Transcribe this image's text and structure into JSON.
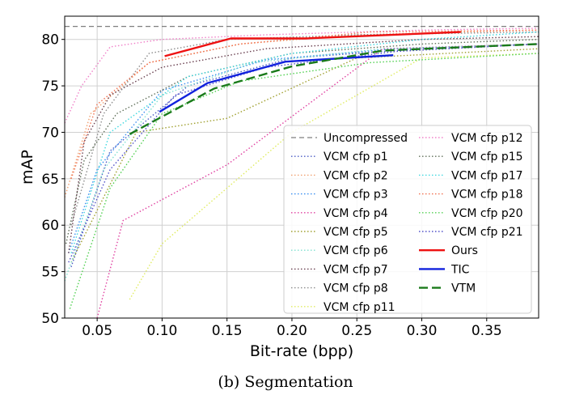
{
  "chart_data": {
    "type": "line",
    "title": "",
    "xlabel": "Bit-rate (bpp)",
    "ylabel": "mAP",
    "xlim": [
      0.025,
      0.39
    ],
    "ylim": [
      50,
      82.5
    ],
    "xticks": [
      "0.05",
      "0.10",
      "0.15",
      "0.20",
      "0.25",
      "0.30",
      "0.35"
    ],
    "xtick_values": [
      0.05,
      0.1,
      0.15,
      0.2,
      0.25,
      0.3,
      0.35
    ],
    "yticks": [
      "50",
      "55",
      "60",
      "65",
      "70",
      "75",
      "80"
    ],
    "ytick_values": [
      50,
      55,
      60,
      65,
      70,
      75,
      80
    ],
    "grid": true,
    "legend_placement": "lower-right",
    "legend_columns": 2,
    "series": [
      {
        "name": "Uncompressed",
        "color": "#7f7f7f",
        "style": "dashed",
        "width": 1.2,
        "x": [
          0.025,
          0.39
        ],
        "y": [
          81.4,
          81.4
        ]
      },
      {
        "name": "VCM cfp p1",
        "color": "#4b5cc4",
        "style": "dotted",
        "width": 1.4,
        "x": [
          0.03,
          0.06,
          0.12,
          0.2,
          0.3,
          0.39
        ],
        "y": [
          55.5,
          68.0,
          75.0,
          78.0,
          79.0,
          79.5
        ]
      },
      {
        "name": "VCM cfp p2",
        "color": "#f0a070",
        "style": "dotted",
        "width": 1.4,
        "x": [
          0.025,
          0.045,
          0.09,
          0.16,
          0.25,
          0.39
        ],
        "y": [
          63.0,
          72.0,
          77.5,
          79.5,
          80.5,
          81.0
        ]
      },
      {
        "name": "VCM cfp p3",
        "color": "#3a8ff0",
        "style": "dotted",
        "width": 1.4,
        "x": [
          0.028,
          0.05,
          0.1,
          0.18,
          0.28,
          0.39
        ],
        "y": [
          57.0,
          66.0,
          74.5,
          77.8,
          79.0,
          79.5
        ]
      },
      {
        "name": "VCM cfp p4",
        "color": "#e040a0",
        "style": "dotted",
        "width": 1.4,
        "x": [
          0.05,
          0.07,
          0.15,
          0.27,
          0.39
        ],
        "y": [
          50.0,
          60.5,
          66.5,
          79.0,
          79.5
        ]
      },
      {
        "name": "VCM cfp p5",
        "color": "#a0a030",
        "style": "dotted",
        "width": 1.4,
        "x": [
          0.03,
          0.08,
          0.15,
          0.25,
          0.39
        ],
        "y": [
          56.0,
          70.0,
          71.5,
          78.0,
          79.0
        ]
      },
      {
        "name": "VCM cfp p6",
        "color": "#7fe0d0",
        "style": "dotted",
        "width": 1.4,
        "x": [
          0.025,
          0.055,
          0.1,
          0.17,
          0.27,
          0.39
        ],
        "y": [
          54.0,
          66.0,
          74.0,
          77.5,
          79.0,
          79.5
        ]
      },
      {
        "name": "VCM cfp p7",
        "color": "#6a4050",
        "style": "dotted",
        "width": 1.4,
        "x": [
          0.028,
          0.04,
          0.06,
          0.1,
          0.18,
          0.3,
          0.39
        ],
        "y": [
          57.0,
          69.0,
          74.0,
          77.0,
          79.0,
          80.0,
          80.3
        ]
      },
      {
        "name": "VCM cfp p8",
        "color": "#8c8c8c",
        "style": "dotted",
        "width": 1.4,
        "x": [
          0.03,
          0.055,
          0.09,
          0.15,
          0.25,
          0.39
        ],
        "y": [
          60.0,
          72.0,
          78.5,
          80.0,
          80.5,
          80.8
        ]
      },
      {
        "name": "VCM cfp p11",
        "color": "#e0ec60",
        "style": "dotted",
        "width": 1.4,
        "x": [
          0.075,
          0.1,
          0.2,
          0.3,
          0.39
        ],
        "y": [
          52.0,
          58.0,
          70.0,
          78.0,
          78.5
        ]
      },
      {
        "name": "VCM cfp p12",
        "color": "#f080c8",
        "style": "dotted",
        "width": 1.4,
        "x": [
          0.025,
          0.038,
          0.06,
          0.1,
          0.18,
          0.3,
          0.39
        ],
        "y": [
          71.0,
          75.0,
          79.2,
          80.0,
          80.5,
          81.0,
          81.2
        ]
      },
      {
        "name": "VCM cfp p15",
        "color": "#60705a",
        "style": "dotted",
        "width": 1.4,
        "x": [
          0.026,
          0.04,
          0.065,
          0.12,
          0.2,
          0.3,
          0.39
        ],
        "y": [
          58.0,
          67.0,
          72.0,
          76.0,
          78.5,
          79.5,
          80.0
        ]
      },
      {
        "name": "VCM cfp p17",
        "color": "#40d8e0",
        "style": "dotted",
        "width": 1.4,
        "x": [
          0.03,
          0.06,
          0.12,
          0.2,
          0.3,
          0.39
        ],
        "y": [
          57.0,
          70.0,
          76.0,
          78.5,
          80.0,
          80.8
        ]
      },
      {
        "name": "VCM cfp p18",
        "color": "#f07050",
        "style": "dotted",
        "width": 1.4,
        "x": [
          0.03,
          0.05,
          0.09,
          0.16,
          0.26,
          0.39
        ],
        "y": [
          65.0,
          73.0,
          77.5,
          79.5,
          80.8,
          81.0
        ]
      },
      {
        "name": "VCM cfp p20",
        "color": "#50d050",
        "style": "dotted",
        "width": 1.4,
        "x": [
          0.029,
          0.06,
          0.1,
          0.16,
          0.26,
          0.39
        ],
        "y": [
          51.0,
          64.0,
          72.0,
          75.5,
          77.5,
          78.5
        ]
      },
      {
        "name": "VCM cfp p21",
        "color": "#5050c8",
        "style": "dotted",
        "width": 1.4,
        "x": [
          0.028,
          0.06,
          0.11,
          0.18,
          0.28,
          0.39
        ],
        "y": [
          56.0,
          66.0,
          74.0,
          77.0,
          78.7,
          79.5
        ]
      },
      {
        "name": "Ours",
        "color": "#ee1111",
        "style": "solid",
        "width": 2.4,
        "x": [
          0.102,
          0.153,
          0.21,
          0.33
        ],
        "y": [
          78.2,
          80.1,
          80.1,
          80.8
        ]
      },
      {
        "name": "TIC",
        "color": "#1122dd",
        "style": "solid",
        "width": 2.4,
        "x": [
          0.098,
          0.135,
          0.195,
          0.278
        ],
        "y": [
          72.2,
          75.3,
          77.6,
          78.3
        ]
      },
      {
        "name": "VTM",
        "color": "#1a7a1a",
        "style": "dashed",
        "width": 2.4,
        "x": [
          0.075,
          0.14,
          0.2,
          0.27,
          0.39
        ],
        "y": [
          69.8,
          74.7,
          77.1,
          78.8,
          79.5
        ]
      }
    ]
  },
  "caption": "(b)  Segmentation"
}
